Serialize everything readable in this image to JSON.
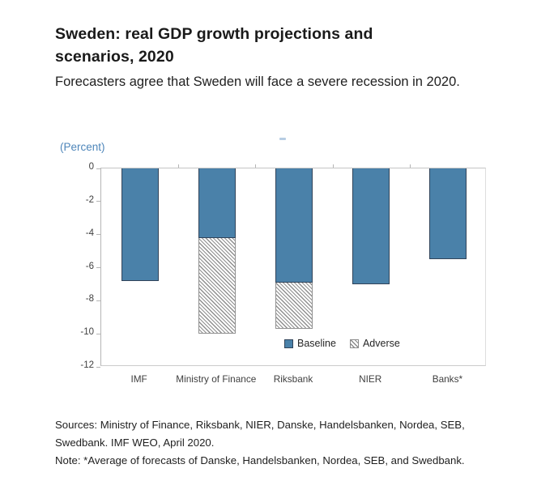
{
  "header": {
    "title": "Sweden: real GDP growth projections and scenarios, 2020",
    "subtitle": "Forecasters agree that Sweden will face a severe recession in 2020."
  },
  "chart": {
    "unit_label": "(Percent)",
    "legend": {
      "baseline_label": "Baseline",
      "adverse_label": "Adverse"
    }
  },
  "chart_data": {
    "type": "bar",
    "stacked": true,
    "categories": [
      "IMF",
      "Ministry of Finance",
      "Riksbank",
      "NIER",
      "Banks*"
    ],
    "series": [
      {
        "name": "Baseline",
        "values": [
          -6.8,
          -4.2,
          -6.9,
          -7.0,
          -5.5
        ]
      },
      {
        "name": "Adverse",
        "values": [
          null,
          -10.0,
          -9.7,
          null,
          null
        ]
      }
    ],
    "adverse_semantics": "Adverse values are bar totals; hatched segment spans from the Baseline value down to the Adverse value.",
    "title": "Sweden: real GDP growth projections and scenarios, 2020",
    "xlabel": "",
    "ylabel": "(Percent)",
    "ylim": [
      -12,
      0
    ],
    "yticks": [
      0,
      -2,
      -4,
      -6,
      -8,
      -10,
      -12
    ],
    "grid": false,
    "legend_position": "inside-bottom-center"
  },
  "footer": {
    "sources": "Sources: Ministry of Finance, Riksbank, NIER, Danske, Handelsbanken, Nordea, SEB, Swedbank. IMF WEO, April 2020.",
    "note": "Note: *Average of forecasts of Danske, Handelsbanken, Nordea, SEB, and Swedbank."
  },
  "colors": {
    "baseline_bar": "#4a81a9",
    "baseline_bar_border": "#31445a",
    "hatch_line": "#8f8f8f",
    "unit_label_blue": "#4e86ba",
    "axis_line": "#b5b5b5",
    "text_dark": "#1f1f1f"
  }
}
